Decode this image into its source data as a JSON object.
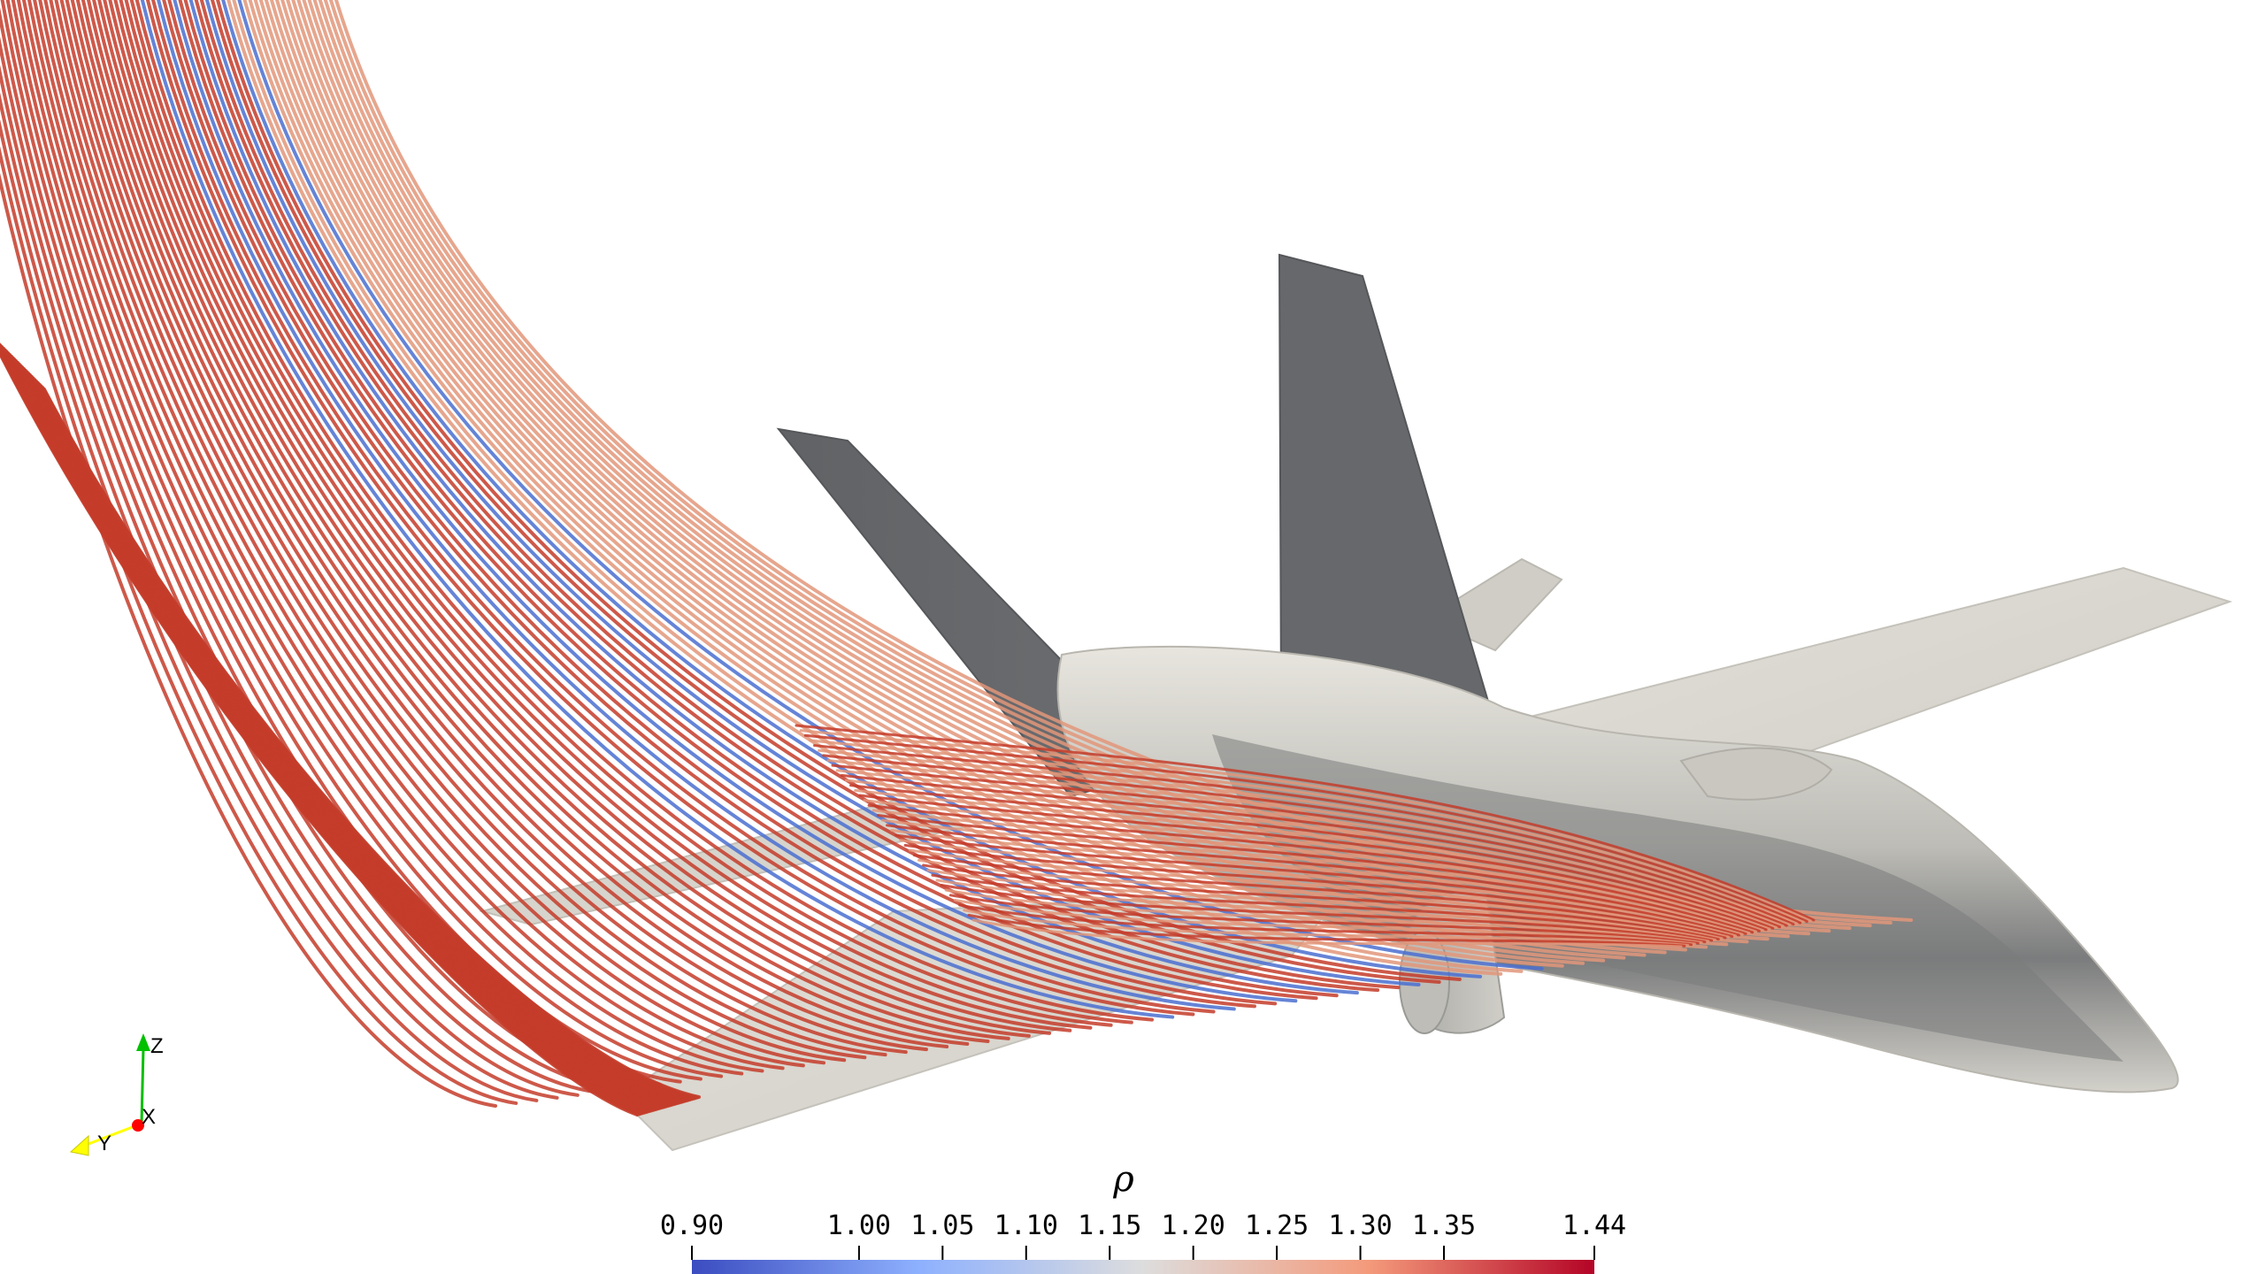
{
  "colorbar": {
    "title": "ρ",
    "range": [
      0.9,
      1.44
    ],
    "ticks": [
      "0.90",
      "1.00",
      "1.05",
      "1.10",
      "1.15",
      "1.20",
      "1.25",
      "1.30",
      "1.35",
      "1.44"
    ],
    "tick_values": [
      0.9,
      1.0,
      1.05,
      1.1,
      1.15,
      1.2,
      1.25,
      1.3,
      1.35,
      1.44
    ],
    "colors": {
      "low": "#3b4cc0",
      "mid": "#dddddd",
      "high": "#b40426"
    }
  },
  "axes": {
    "z_label": "Z",
    "x_label": "X",
    "y_label": "Y",
    "z_color": "#00c000",
    "x_color": "#ff0000",
    "y_color": "#ffff00"
  },
  "colors": {
    "aircraft_light": "#d8d6cf",
    "aircraft_dark": "#5b5d60",
    "aircraft_mid": "#a6a6a2",
    "streamline_red": "#c43c2a",
    "streamline_salmon": "#e2977a",
    "streamline_blue": "#4a6fd0"
  }
}
